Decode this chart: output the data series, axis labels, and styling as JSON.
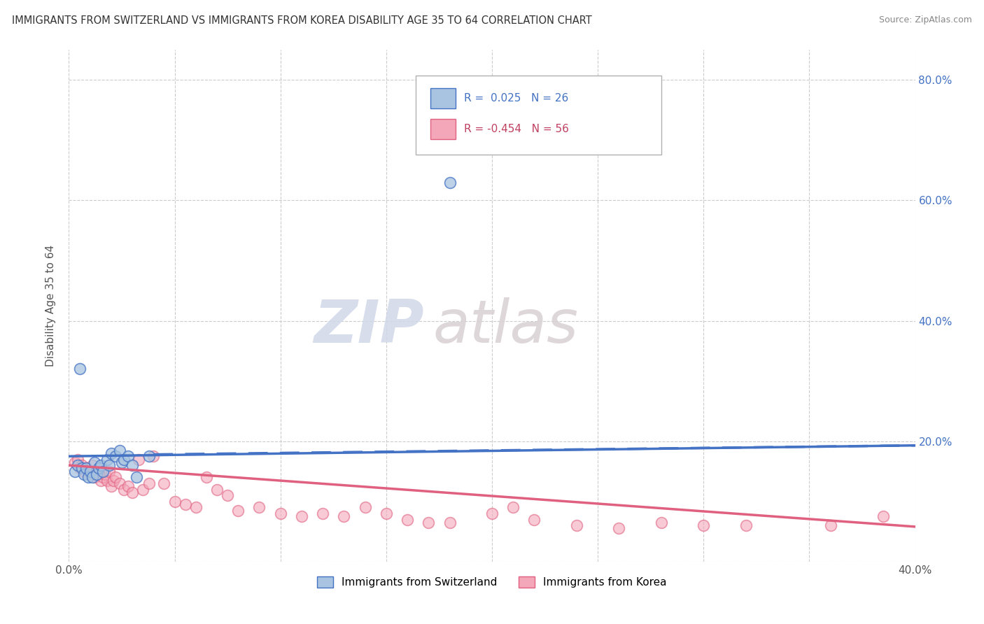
{
  "title": "IMMIGRANTS FROM SWITZERLAND VS IMMIGRANTS FROM KOREA DISABILITY AGE 35 TO 64 CORRELATION CHART",
  "source": "Source: ZipAtlas.com",
  "ylabel": "Disability Age 35 to 64",
  "xlim": [
    0.0,
    0.4
  ],
  "ylim": [
    0.0,
    0.85
  ],
  "x_ticks": [
    0.0,
    0.05,
    0.1,
    0.15,
    0.2,
    0.25,
    0.3,
    0.35,
    0.4
  ],
  "y_ticks": [
    0.0,
    0.2,
    0.4,
    0.6,
    0.8
  ],
  "legend_label1": "Immigrants from Switzerland",
  "legend_label2": "Immigrants from Korea",
  "r1": "0.025",
  "n1": "26",
  "r2": "-0.454",
  "n2": "56",
  "color1": "#a8c4e0",
  "color2": "#f4a7b9",
  "line_color1": "#4472c4",
  "line_color2": "#e06080",
  "watermark_zip": "ZIP",
  "watermark_atlas": "atlas",
  "background_color": "#ffffff",
  "grid_color": "#cccccc",
  "swiss_x": [
    0.003,
    0.004,
    0.005,
    0.006,
    0.007,
    0.008,
    0.009,
    0.01,
    0.011,
    0.012,
    0.013,
    0.014,
    0.015,
    0.016,
    0.018,
    0.019,
    0.02,
    0.022,
    0.024,
    0.025,
    0.026,
    0.028,
    0.03,
    0.032,
    0.038,
    0.18
  ],
  "swiss_y": [
    0.15,
    0.16,
    0.32,
    0.155,
    0.145,
    0.155,
    0.14,
    0.15,
    0.14,
    0.165,
    0.145,
    0.155,
    0.16,
    0.15,
    0.17,
    0.16,
    0.18,
    0.175,
    0.185,
    0.165,
    0.17,
    0.175,
    0.16,
    0.14,
    0.175,
    0.63
  ],
  "korea_x": [
    0.003,
    0.004,
    0.005,
    0.006,
    0.007,
    0.008,
    0.009,
    0.01,
    0.011,
    0.012,
    0.013,
    0.014,
    0.015,
    0.016,
    0.017,
    0.018,
    0.019,
    0.02,
    0.021,
    0.022,
    0.024,
    0.026,
    0.028,
    0.03,
    0.033,
    0.035,
    0.038,
    0.04,
    0.045,
    0.05,
    0.055,
    0.06,
    0.065,
    0.07,
    0.075,
    0.08,
    0.09,
    0.1,
    0.11,
    0.12,
    0.13,
    0.14,
    0.15,
    0.16,
    0.17,
    0.18,
    0.2,
    0.21,
    0.22,
    0.24,
    0.26,
    0.28,
    0.3,
    0.32,
    0.36,
    0.385
  ],
  "korea_y": [
    0.165,
    0.17,
    0.155,
    0.16,
    0.15,
    0.155,
    0.15,
    0.145,
    0.16,
    0.14,
    0.145,
    0.145,
    0.135,
    0.14,
    0.145,
    0.135,
    0.15,
    0.125,
    0.135,
    0.14,
    0.13,
    0.12,
    0.125,
    0.115,
    0.17,
    0.12,
    0.13,
    0.175,
    0.13,
    0.1,
    0.095,
    0.09,
    0.14,
    0.12,
    0.11,
    0.085,
    0.09,
    0.08,
    0.075,
    0.08,
    0.075,
    0.09,
    0.08,
    0.07,
    0.065,
    0.065,
    0.08,
    0.09,
    0.07,
    0.06,
    0.055,
    0.065,
    0.06,
    0.06,
    0.06,
    0.075
  ],
  "swiss_line_x": [
    0.0,
    0.4
  ],
  "swiss_line_y": [
    0.175,
    0.193
  ],
  "korea_line_x": [
    0.0,
    0.4
  ],
  "korea_line_y": [
    0.16,
    0.058
  ]
}
